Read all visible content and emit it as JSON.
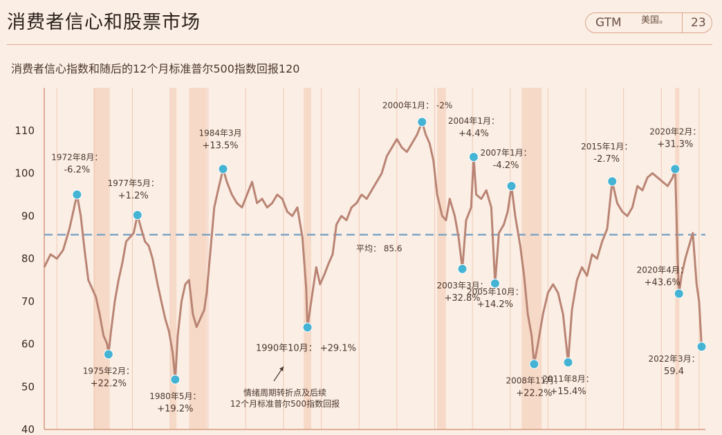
{
  "header": {
    "title": "消费者信心和股票市场",
    "badge_left": "GTM",
    "badge_mid": "美国。",
    "badge_page": "23"
  },
  "subtitle": "消费者信心指数和随后的12个月标准普尔500指数回报120",
  "colors": {
    "line": "#b98474",
    "avg": "#7fa6c6",
    "dot": "#45b3d3",
    "band": "#f7d9c7",
    "grid": "#efc9b6"
  },
  "chart_data": {
    "type": "line",
    "title": "消费者信心指数和随后的12个月标准普尔500指数回报120",
    "ylim": [
      40,
      120
    ],
    "yticks": [
      40,
      50,
      60,
      70,
      80,
      90,
      100,
      110
    ],
    "xlim": [
      1970,
      2022.5
    ],
    "grid": true,
    "average": {
      "value": 85.6,
      "label": "平均：",
      "label_value": "85.6"
    },
    "recessions": [
      [
        1973.9,
        1975.2
      ],
      [
        1980.0,
        1980.5
      ],
      [
        1981.5,
        1982.9
      ],
      [
        1990.6,
        1991.2
      ],
      [
        2001.2,
        2001.9
      ],
      [
        2007.9,
        2009.5
      ],
      [
        2020.1,
        2020.4
      ]
    ],
    "series": [
      {
        "values": [
          [
            1970.0,
            78
          ],
          [
            1970.5,
            81
          ],
          [
            1971.0,
            80
          ],
          [
            1971.5,
            82
          ],
          [
            1972.0,
            87
          ],
          [
            1972.3,
            91
          ],
          [
            1972.6,
            95
          ],
          [
            1972.9,
            90
          ],
          [
            1973.2,
            82
          ],
          [
            1973.5,
            75
          ],
          [
            1973.8,
            73
          ],
          [
            1974.1,
            71
          ],
          [
            1974.4,
            67
          ],
          [
            1974.7,
            62
          ],
          [
            1975.0,
            60
          ],
          [
            1975.1,
            57.6
          ],
          [
            1975.3,
            63
          ],
          [
            1975.6,
            70
          ],
          [
            1975.9,
            75
          ],
          [
            1976.2,
            79
          ],
          [
            1976.5,
            84
          ],
          [
            1976.8,
            85
          ],
          [
            1977.1,
            86
          ],
          [
            1977.4,
            90.2
          ],
          [
            1977.7,
            87
          ],
          [
            1978.0,
            84
          ],
          [
            1978.3,
            83
          ],
          [
            1978.6,
            80
          ],
          [
            1979.0,
            74
          ],
          [
            1979.3,
            70
          ],
          [
            1979.6,
            66
          ],
          [
            1979.9,
            63
          ],
          [
            1980.2,
            58
          ],
          [
            1980.4,
            51.7
          ],
          [
            1980.6,
            62
          ],
          [
            1980.9,
            70
          ],
          [
            1981.2,
            74
          ],
          [
            1981.5,
            75
          ],
          [
            1981.8,
            67
          ],
          [
            1982.1,
            64
          ],
          [
            1982.4,
            66
          ],
          [
            1982.7,
            68
          ],
          [
            1982.9,
            72
          ],
          [
            1983.2,
            82
          ],
          [
            1983.5,
            92
          ],
          [
            1983.8,
            96
          ],
          [
            1984.2,
            101
          ],
          [
            1984.5,
            98
          ],
          [
            1984.9,
            95
          ],
          [
            1985.3,
            93
          ],
          [
            1985.7,
            92
          ],
          [
            1986.1,
            95
          ],
          [
            1986.5,
            98
          ],
          [
            1986.9,
            93
          ],
          [
            1987.3,
            94
          ],
          [
            1987.7,
            92
          ],
          [
            1988.1,
            93
          ],
          [
            1988.5,
            95
          ],
          [
            1988.9,
            94
          ],
          [
            1989.3,
            91
          ],
          [
            1989.7,
            90
          ],
          [
            1990.1,
            92
          ],
          [
            1990.5,
            85
          ],
          [
            1990.8,
            73
          ],
          [
            1990.9,
            63.9
          ],
          [
            1991.2,
            70
          ],
          [
            1991.6,
            78
          ],
          [
            1991.9,
            74
          ],
          [
            1992.2,
            76
          ],
          [
            1992.6,
            79
          ],
          [
            1992.9,
            81
          ],
          [
            1993.2,
            88
          ],
          [
            1993.6,
            90
          ],
          [
            1994.0,
            89
          ],
          [
            1994.4,
            92
          ],
          [
            1994.8,
            93
          ],
          [
            1995.2,
            95
          ],
          [
            1995.6,
            94
          ],
          [
            1996.0,
            96
          ],
          [
            1996.4,
            98
          ],
          [
            1996.8,
            100
          ],
          [
            1997.2,
            104
          ],
          [
            1997.6,
            106
          ],
          [
            1998.0,
            108
          ],
          [
            1998.4,
            106
          ],
          [
            1998.8,
            105
          ],
          [
            1999.2,
            107
          ],
          [
            1999.6,
            109
          ],
          [
            2000.0,
            112
          ],
          [
            2000.3,
            109
          ],
          [
            2000.6,
            107
          ],
          [
            2000.9,
            103
          ],
          [
            2001.2,
            95
          ],
          [
            2001.6,
            90
          ],
          [
            2001.9,
            89
          ],
          [
            2002.2,
            94
          ],
          [
            2002.6,
            90
          ],
          [
            2002.9,
            85
          ],
          [
            2003.2,
            77.6
          ],
          [
            2003.5,
            89
          ],
          [
            2003.9,
            92
          ],
          [
            2004.1,
            103.8
          ],
          [
            2004.3,
            95
          ],
          [
            2004.7,
            94
          ],
          [
            2005.1,
            96
          ],
          [
            2005.5,
            92
          ],
          [
            2005.8,
            74.2
          ],
          [
            2006.1,
            86
          ],
          [
            2006.5,
            88
          ],
          [
            2006.8,
            91
          ],
          [
            2007.1,
            97
          ],
          [
            2007.4,
            90
          ],
          [
            2007.8,
            83
          ],
          [
            2008.1,
            76
          ],
          [
            2008.4,
            67
          ],
          [
            2008.7,
            62
          ],
          [
            2008.9,
            55.3
          ],
          [
            2009.2,
            60
          ],
          [
            2009.6,
            67
          ],
          [
            2010.0,
            72
          ],
          [
            2010.4,
            74
          ],
          [
            2010.8,
            72
          ],
          [
            2011.2,
            67
          ],
          [
            2011.6,
            55.7
          ],
          [
            2011.9,
            68
          ],
          [
            2012.3,
            75
          ],
          [
            2012.7,
            78
          ],
          [
            2013.1,
            76
          ],
          [
            2013.5,
            81
          ],
          [
            2013.9,
            80
          ],
          [
            2014.3,
            84
          ],
          [
            2014.7,
            87
          ],
          [
            2015.1,
            98.1
          ],
          [
            2015.5,
            93
          ],
          [
            2015.9,
            91
          ],
          [
            2016.3,
            90
          ],
          [
            2016.7,
            92
          ],
          [
            2017.1,
            97
          ],
          [
            2017.5,
            96
          ],
          [
            2017.9,
            99
          ],
          [
            2018.3,
            100
          ],
          [
            2018.7,
            99
          ],
          [
            2019.1,
            98
          ],
          [
            2019.5,
            97
          ],
          [
            2019.9,
            99
          ],
          [
            2020.1,
            101
          ],
          [
            2020.3,
            80
          ],
          [
            2020.4,
            71.8
          ],
          [
            2020.6,
            76
          ],
          [
            2020.9,
            80
          ],
          [
            2021.2,
            83
          ],
          [
            2021.5,
            86
          ],
          [
            2021.8,
            74
          ],
          [
            2022.0,
            70
          ],
          [
            2022.2,
            59.4
          ]
        ]
      }
    ],
    "highlights": [
      {
        "x": 1972.6,
        "y": 95,
        "date": "1972年8月：",
        "ret": "-6.2%"
      },
      {
        "x": 1975.1,
        "y": 57.6,
        "date": "1975年2月：",
        "ret": "+22.2%"
      },
      {
        "x": 1977.4,
        "y": 90.2,
        "date": "1977年5月：",
        "ret": "+1.2%"
      },
      {
        "x": 1980.4,
        "y": 51.7,
        "date": "1980年5月：",
        "ret": "+19.2%"
      },
      {
        "x": 1984.2,
        "y": 101,
        "date": "1984年3月",
        "ret": "+13.5%"
      },
      {
        "x": 1990.9,
        "y": 63.9,
        "date": "1990年10月：",
        "ret": "+29.1%"
      },
      {
        "x": 2000.0,
        "y": 112,
        "date": "2000年1月：",
        "ret": "-2%"
      },
      {
        "x": 2003.2,
        "y": 77.6,
        "date": "2003年3月：",
        "ret": "+32.8%"
      },
      {
        "x": 2004.1,
        "y": 103.8,
        "date": "2004年1月：",
        "ret": "+4.4%"
      },
      {
        "x": 2005.8,
        "y": 74.2,
        "date": "2005年10月：",
        "ret": "+14.2%"
      },
      {
        "x": 2007.1,
        "y": 97,
        "date": "2007年1月：",
        "ret": "-4.2%"
      },
      {
        "x": 2008.9,
        "y": 55.3,
        "date": "2008年11月：",
        "ret": "+22.2%"
      },
      {
        "x": 2011.6,
        "y": 55.7,
        "date": "2011年8月：",
        "ret": "+15.4%"
      },
      {
        "x": 2015.1,
        "y": 98.1,
        "date": "2015年1月：",
        "ret": "-2.7%"
      },
      {
        "x": 2020.1,
        "y": 101,
        "date": "2020年2月：",
        "ret": "+31.3%"
      },
      {
        "x": 2020.4,
        "y": 71.8,
        "date": "2020年4月：",
        "ret": "+43.6%"
      },
      {
        "x": 2022.2,
        "y": 59.4,
        "date": "2022年3月：",
        "ret": "59.4"
      }
    ],
    "note": [
      "情绪周期转折点及后续",
      "12个月标准普尔500指数回报"
    ]
  }
}
